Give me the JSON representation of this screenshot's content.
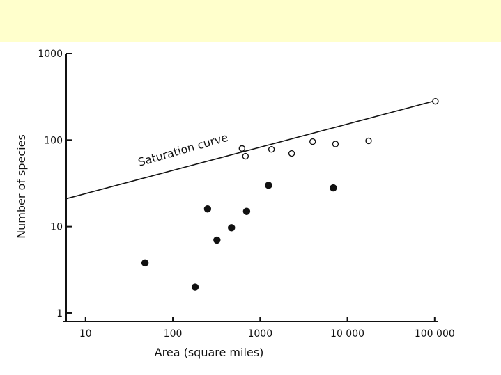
{
  "colors": {
    "band": "#ffffcc",
    "ink": "#111111",
    "background": "#ffffff"
  },
  "chart_data": {
    "type": "scatter",
    "title": "",
    "xlabel": "Area (square miles)",
    "ylabel": "Number of species",
    "x_scale": "log",
    "y_scale": "log",
    "xlim": [
      6,
      110000
    ],
    "ylim": [
      0.8,
      1000
    ],
    "x_ticks": [
      10,
      100,
      1000,
      10000,
      100000
    ],
    "x_tick_labels": [
      "10",
      "100",
      "1000",
      "10 000",
      "100 000"
    ],
    "y_ticks": [
      1,
      10,
      100,
      1000
    ],
    "y_tick_labels": [
      "1",
      "10",
      "100",
      "1000"
    ],
    "grid": false,
    "series": [
      {
        "marker": "filled-circle",
        "points": [
          {
            "x": 48,
            "y": 3.8
          },
          {
            "x": 180,
            "y": 2.0
          },
          {
            "x": 250,
            "y": 16
          },
          {
            "x": 320,
            "y": 7
          },
          {
            "x": 470,
            "y": 9.7
          },
          {
            "x": 700,
            "y": 15
          },
          {
            "x": 1250,
            "y": 30
          },
          {
            "x": 6900,
            "y": 28
          }
        ]
      },
      {
        "marker": "open-circle",
        "points": [
          {
            "x": 620,
            "y": 80
          },
          {
            "x": 680,
            "y": 65
          },
          {
            "x": 1350,
            "y": 78
          },
          {
            "x": 2300,
            "y": 70
          },
          {
            "x": 4000,
            "y": 96
          },
          {
            "x": 7300,
            "y": 90
          },
          {
            "x": 17500,
            "y": 98
          },
          {
            "x": 102000,
            "y": 280
          }
        ]
      }
    ],
    "lines": [
      {
        "label": "Saturation curve",
        "x": [
          6,
          102000
        ],
        "y": [
          21,
          285
        ]
      }
    ]
  }
}
